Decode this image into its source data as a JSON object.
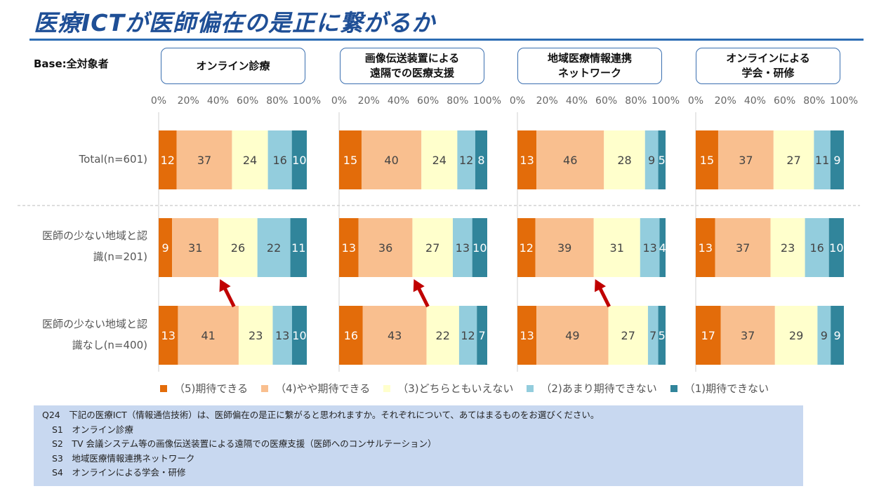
{
  "title": "医療ICTが医師偏在の是正に繋がるか",
  "base_label": "Base:全対象者",
  "colors": {
    "s5": "#e36c0a",
    "s4": "#f9bf8f",
    "s3": "#ffffcc",
    "s2": "#93cddd",
    "s1": "#31859b",
    "arrow": "#c00000",
    "header_border": "#3a6fb0"
  },
  "chart_data": {
    "type": "bar",
    "orientation": "horizontal",
    "stacked": true,
    "percent_axis_ticks": [
      "0%",
      "20%",
      "40%",
      "60%",
      "80%",
      "100%"
    ],
    "xlim": [
      0,
      100
    ],
    "categories": [
      "Total(n=601)",
      "医師の少ない地域と認\n識(n=201)",
      "医師の少ない地域と認\n識なし(n=400)"
    ],
    "legend": [
      {
        "key": "s5",
        "label": "（5)期待できる"
      },
      {
        "key": "s4",
        "label": "（4)やや期待できる"
      },
      {
        "key": "s3",
        "label": "（3)どちらともいえない"
      },
      {
        "key": "s2",
        "label": "（2)あまり期待できない"
      },
      {
        "key": "s1",
        "label": "（1)期待できない"
      }
    ],
    "panels": [
      {
        "title": "オンライン診療",
        "rows": [
          [
            12,
            37,
            24,
            16,
            10
          ],
          [
            9,
            31,
            26,
            22,
            11
          ],
          [
            13,
            41,
            23,
            13,
            10
          ]
        ]
      },
      {
        "title": "画像伝送装置による\n遠隔での医療支援",
        "rows": [
          [
            15,
            40,
            24,
            12,
            8
          ],
          [
            13,
            36,
            27,
            13,
            10
          ],
          [
            16,
            43,
            22,
            12,
            7
          ]
        ]
      },
      {
        "title": "地域医療情報連携\nネットワーク",
        "rows": [
          [
            13,
            46,
            28,
            9,
            5
          ],
          [
            12,
            39,
            31,
            13,
            4
          ],
          [
            13,
            49,
            27,
            7,
            5
          ]
        ]
      },
      {
        "title": "オンラインによる\n学会・研修",
        "rows": [
          [
            15,
            37,
            27,
            11,
            9
          ],
          [
            13,
            37,
            23,
            16,
            10
          ],
          [
            17,
            37,
            29,
            9,
            9
          ]
        ]
      }
    ],
    "arrows_on_panels": [
      0,
      1,
      2
    ]
  },
  "notes": {
    "question": "Q24　下記の医療ICT（情報通信技術）は、医師偏在の是正に繋がると思われますか。それぞれについて、あてはまるものをお選びください。",
    "items": [
      "S1　オンライン診療",
      "S2　TV 会議システム等の画像伝送装置による遠隔での医療支援（医師へのコンサルテーション）",
      "S3　地域医療情報連携ネットワーク",
      "S4　オンラインによる学会・研修"
    ]
  }
}
